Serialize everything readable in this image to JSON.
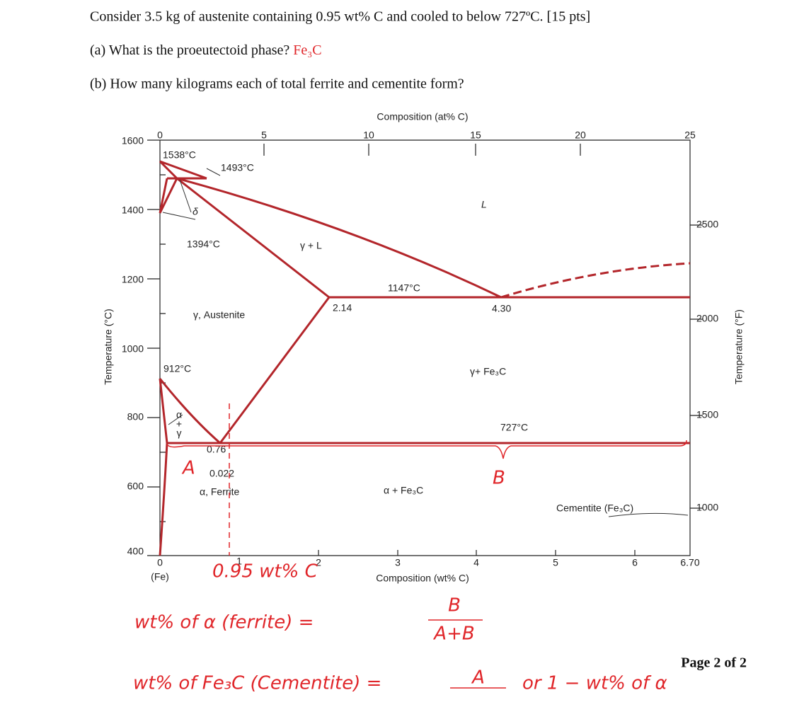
{
  "question": {
    "title": "Consider 3.5 kg of austenite containing 0.95 wt% C and cooled to below 727ºC. [15 pts]",
    "part_a": {
      "prompt": "(a) What is the proeutectoid phase?",
      "answer": "Fe₃C"
    },
    "part_b": "(b) How many kilograms each of total ferrite and cementite form?"
  },
  "diagram": {
    "top_axis_title": "Composition (at% C)",
    "top_ticks": [
      "0",
      "5",
      "10",
      "15",
      "20",
      "25"
    ],
    "left_ticks": [
      "1600",
      "1400",
      "1200",
      "1000",
      "800",
      "600",
      "400"
    ],
    "left_title": "Temperature (°C)",
    "right_ticks": [
      "2500",
      "2000",
      "1500",
      "1000"
    ],
    "right_title": "Temperature (°F)",
    "bottom_ticks": [
      "0",
      "1",
      "2",
      "3",
      "4",
      "5",
      "6",
      "6.70"
    ],
    "bottom_sub": "(Fe)",
    "bottom_title": "Composition (wt% C)",
    "labels": {
      "t1538": "1538°C",
      "t1493": "1493°C",
      "delta": "δ",
      "t1394": "1394°C",
      "gamma_l": "γ + L",
      "liquid": "L",
      "t1147": "1147°C",
      "c214": "2.14",
      "c430": "4.30",
      "austenite": "γ, Austenite",
      "t912": "912°C",
      "gamma_fe3c": "γ+ Fe₃C",
      "alpha_gamma": [
        "α",
        "+",
        "γ"
      ],
      "t727": "727°C",
      "c076": "0.76",
      "c0022": "0.022",
      "ferrite": "α, Ferrite",
      "alpha_fe3c": "α + Fe₃C",
      "cementite": "Cementite (Fe₃C)"
    }
  },
  "handwriting": {
    "a": "A",
    "b": "B",
    "composition": "0.95 wt% C",
    "ferrite_eq": "wt% of α (ferrite) =",
    "ferrite_num": "B",
    "ferrite_den": "A+B",
    "cementite_eq": "wt% of Fe₃C (Cementite) =",
    "cementite_num": "A",
    "alt": "or 1 − wt% of α"
  },
  "footer": "Page 2 of 2"
}
